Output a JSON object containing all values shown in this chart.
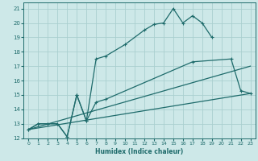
{
  "xlabel": "Humidex (Indice chaleur)",
  "bg_color": "#cde8e8",
  "grid_color": "#aacfcf",
  "line_color": "#1e6b6b",
  "xlim": [
    -0.5,
    23.5
  ],
  "ylim": [
    12,
    21.4
  ],
  "xticks": [
    0,
    1,
    2,
    3,
    4,
    5,
    6,
    7,
    8,
    9,
    10,
    11,
    12,
    13,
    14,
    15,
    16,
    17,
    18,
    19,
    20,
    21,
    22,
    23
  ],
  "yticks": [
    12,
    13,
    14,
    15,
    16,
    17,
    18,
    19,
    20,
    21
  ],
  "line1_x": [
    0,
    1,
    2,
    3,
    4,
    5,
    6,
    7,
    8,
    10,
    12,
    13,
    14,
    15,
    16,
    17,
    18,
    19
  ],
  "line1_y": [
    12.6,
    13.0,
    13.0,
    13.0,
    12.1,
    15.0,
    13.2,
    17.5,
    17.7,
    18.5,
    19.5,
    19.9,
    20.0,
    21.0,
    20.0,
    20.5,
    20.0,
    19.0
  ],
  "line2_x": [
    0,
    1,
    2,
    3,
    4,
    5,
    6,
    7,
    8,
    17,
    21,
    22,
    23
  ],
  "line2_y": [
    12.6,
    13.0,
    13.0,
    13.0,
    12.1,
    15.0,
    13.2,
    14.5,
    14.7,
    17.3,
    17.5,
    15.3,
    15.1
  ],
  "line3_x": [
    0,
    23
  ],
  "line3_y": [
    12.6,
    17.0
  ],
  "line4_x": [
    0,
    23
  ],
  "line4_y": [
    12.6,
    15.1
  ]
}
